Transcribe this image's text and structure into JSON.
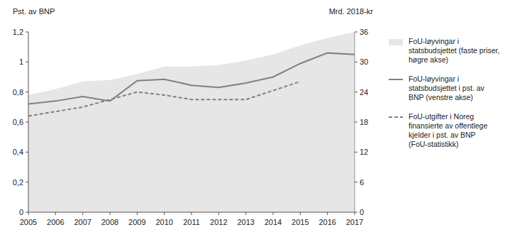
{
  "chart_data": {
    "type": "line",
    "y_label": "Pst. av BNP",
    "y2_label": "Mrd. 2018-kr",
    "x": [
      2005,
      2006,
      2007,
      2008,
      2009,
      2010,
      2011,
      2012,
      2013,
      2014,
      2015,
      2016,
      2017
    ],
    "xlim": [
      2005,
      2017
    ],
    "xticks": [
      2005,
      2006,
      2007,
      2008,
      2009,
      2010,
      2011,
      2012,
      2013,
      2014,
      2015,
      2016,
      2017
    ],
    "ylim": [
      0,
      1.2
    ],
    "yticks": [
      0,
      {
        "value": 0.2,
        "label": "0,2"
      },
      {
        "value": 0.4,
        "label": "0,4"
      },
      {
        "value": 0.6,
        "label": "0,6"
      },
      {
        "value": 0.8,
        "label": "0,8"
      },
      1,
      {
        "value": 1.2,
        "label": "1,2"
      }
    ],
    "y2lim": [
      0,
      36
    ],
    "y2ticks": [
      0,
      6,
      12,
      18,
      24,
      30,
      36
    ],
    "grid": false,
    "legend": "right",
    "series": [
      {
        "name": "FoU-løyvingar i statsbudsjettet (faste priser, høgre akse)",
        "type": "area",
        "axis": "y2",
        "color": "#e6e6e6",
        "values": [
          23.4,
          24.6,
          26.1,
          26.4,
          27.6,
          29.1,
          29.1,
          29.4,
          30.3,
          31.5,
          33.3,
          34.8,
          36
        ]
      },
      {
        "name": "FoU-løyvingar i statsbudsjettet i pst. av BNP (venstre akse)",
        "type": "line",
        "color": "#808080",
        "line_style": "solid",
        "values": [
          0.72,
          0.74,
          0.77,
          0.74,
          0.875,
          0.885,
          0.845,
          0.83,
          0.86,
          0.9,
          0.99,
          1.06,
          1.05
        ]
      },
      {
        "name": "FoU-utgifter i Noreg finansierte av offentlege kjelder i pst. av BNP (FoU-statistikk)",
        "type": "line",
        "color": "#808080",
        "line_style": "dashed",
        "values": [
          0.64,
          0.67,
          0.7,
          0.75,
          0.8,
          0.78,
          0.75,
          0.75,
          0.75,
          0.81,
          0.87,
          null,
          null
        ]
      }
    ]
  }
}
